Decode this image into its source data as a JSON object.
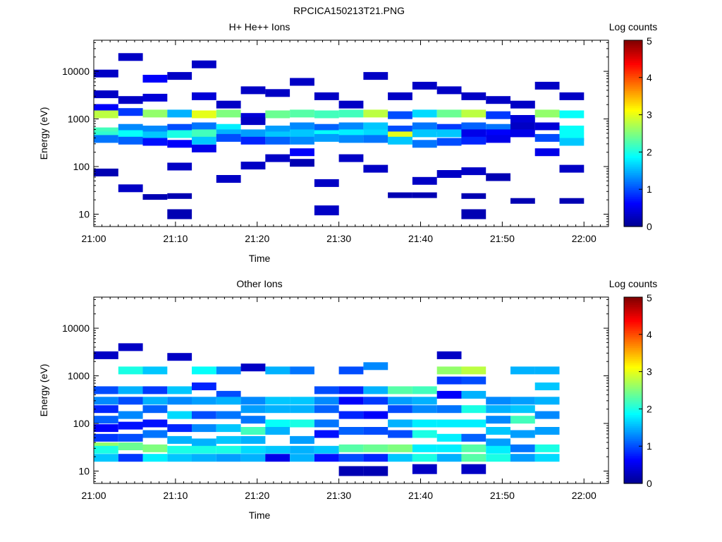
{
  "figure": {
    "title": "RPCICA150213T21.PNG"
  },
  "colors": {
    "cmap": [
      "#00008f",
      "#0000ff",
      "#007fff",
      "#00ffff",
      "#7fff7f",
      "#ffff00",
      "#ff7f00",
      "#ff0000",
      "#7f0000"
    ]
  },
  "chart_data": [
    {
      "type": "heatmap",
      "title": "H+ He++ Ions",
      "xlabel": "Time",
      "ylabel": "Energy (eV)",
      "xticks": [
        "21:00",
        "21:10",
        "21:20",
        "21:30",
        "21:40",
        "21:50",
        "22:00"
      ],
      "xlim_minutes": [
        0,
        63
      ],
      "yscale": "log",
      "ylim": [
        5.5,
        45000
      ],
      "yticks": [
        "10",
        "100",
        "1000",
        "10000"
      ],
      "colorbar": {
        "label": "Log counts",
        "range": [
          0,
          5
        ],
        "ticks": [
          "0",
          "1",
          "2",
          "3",
          "4",
          "5"
        ]
      },
      "time_bins_minutes": [
        0,
        3,
        6,
        9,
        12,
        15,
        18,
        21,
        24,
        27,
        30,
        33,
        36,
        39,
        42,
        45,
        48,
        51,
        54,
        57,
        60
      ],
      "bins": [
        [
          1700,
          0.6
        ],
        [
          1250,
          2.8
        ],
        [
          550,
          2.2
        ],
        [
          450,
          2.1
        ],
        [
          380,
          1.2
        ],
        [
          3300,
          0.3
        ],
        [
          9000,
          0.3
        ],
        [
          75,
          0.2
        ],
        [
          1400,
          0.9
        ],
        [
          650,
          1.3
        ],
        [
          480,
          1.9
        ],
        [
          350,
          1.1
        ],
        [
          2500,
          0.3
        ],
        [
          20000,
          0.3
        ],
        [
          35,
          0.3
        ],
        [
          1300,
          2.6
        ],
        [
          600,
          1.3
        ],
        [
          450,
          1.6
        ],
        [
          330,
          0.7
        ],
        [
          2800,
          0.4
        ],
        [
          7000,
          0.6
        ],
        [
          23,
          0.2
        ],
        [
          1300,
          1.5
        ],
        [
          650,
          1.0
        ],
        [
          480,
          2.0
        ],
        [
          300,
          0.6
        ],
        [
          8000,
          0.3
        ],
        [
          100,
          0.3
        ],
        [
          10,
          0.2
        ],
        [
          24,
          0.2
        ],
        [
          1250,
          3.0
        ],
        [
          700,
          1.2
        ],
        [
          500,
          2.2
        ],
        [
          350,
          1.6
        ],
        [
          240,
          0.5
        ],
        [
          3000,
          0.4
        ],
        [
          14000,
          0.3
        ],
        [
          1300,
          2.5
        ],
        [
          650,
          1.8
        ],
        [
          500,
          1.5
        ],
        [
          400,
          1.0
        ],
        [
          2000,
          0.3
        ],
        [
          55,
          0.3
        ],
        [
          1100,
          0.4
        ],
        [
          900,
          0.3
        ],
        [
          500,
          1.4
        ],
        [
          350,
          0.8
        ],
        [
          4000,
          0.3
        ],
        [
          105,
          0.3
        ],
        [
          1250,
          2.4
        ],
        [
          600,
          1.4
        ],
        [
          450,
          1.6
        ],
        [
          350,
          1.1
        ],
        [
          3500,
          0.3
        ],
        [
          150,
          0.3
        ],
        [
          1300,
          2.3
        ],
        [
          700,
          1.3
        ],
        [
          500,
          1.6
        ],
        [
          350,
          1.3
        ],
        [
          200,
          0.6
        ],
        [
          6000,
          0.3
        ],
        [
          120,
          0.2
        ],
        [
          1250,
          2.2
        ],
        [
          650,
          1.1
        ],
        [
          480,
          1.9
        ],
        [
          400,
          1.4
        ],
        [
          3000,
          0.3
        ],
        [
          45,
          0.3
        ],
        [
          12,
          0.3
        ],
        [
          1300,
          2.2
        ],
        [
          700,
          1.3
        ],
        [
          500,
          1.8
        ],
        [
          380,
          1.3
        ],
        [
          150,
          0.3
        ],
        [
          2000,
          0.3
        ],
        [
          1300,
          2.8
        ],
        [
          700,
          1.6
        ],
        [
          500,
          1.7
        ],
        [
          380,
          1.2
        ],
        [
          8000,
          0.3
        ],
        [
          90,
          0.3
        ],
        [
          1200,
          1.0
        ],
        [
          600,
          1.0
        ],
        [
          450,
          3.0
        ],
        [
          350,
          1.6
        ],
        [
          3000,
          0.3
        ],
        [
          25,
          0.2
        ],
        [
          1300,
          1.7
        ],
        [
          700,
          1.2
        ],
        [
          500,
          1.6
        ],
        [
          300,
          1.2
        ],
        [
          5000,
          0.3
        ],
        [
          50,
          0.3
        ],
        [
          25,
          0.2
        ],
        [
          1300,
          2.4
        ],
        [
          650,
          0.9
        ],
        [
          500,
          1.6
        ],
        [
          330,
          1.0
        ],
        [
          4000,
          0.3
        ],
        [
          70,
          0.3
        ],
        [
          1300,
          2.8
        ],
        [
          700,
          1.1
        ],
        [
          500,
          0.5
        ],
        [
          350,
          0.8
        ],
        [
          3000,
          0.3
        ],
        [
          80,
          0.3
        ],
        [
          10,
          0.2
        ],
        [
          24,
          0.2
        ],
        [
          1200,
          0.9
        ],
        [
          650,
          1.2
        ],
        [
          500,
          0.6
        ],
        [
          380,
          0.5
        ],
        [
          2500,
          0.3
        ],
        [
          60,
          0.2
        ],
        [
          1000,
          0.4
        ],
        [
          700,
          0.3
        ],
        [
          500,
          0.5
        ],
        [
          2000,
          0.3
        ],
        [
          19,
          0.2
        ],
        [
          1300,
          2.6
        ],
        [
          700,
          0.4
        ],
        [
          400,
          1.0
        ],
        [
          200,
          0.5
        ],
        [
          5000,
          0.3
        ],
        [
          1250,
          1.9
        ],
        [
          600,
          1.9
        ],
        [
          420,
          1.9
        ],
        [
          330,
          1.6
        ],
        [
          3000,
          0.3
        ],
        [
          90,
          0.3
        ],
        [
          19,
          0.2
        ]
      ]
    },
    {
      "type": "heatmap",
      "title": "Other Ions",
      "xlabel": "Time",
      "ylabel": "Energy (eV)",
      "xticks": [
        "21:00",
        "21:10",
        "21:20",
        "21:30",
        "21:40",
        "21:50",
        "22:00"
      ],
      "xlim_minutes": [
        0,
        63
      ],
      "yscale": "log",
      "ylim": [
        5.5,
        45000
      ],
      "yticks": [
        "10",
        "100",
        "1000",
        "10000"
      ],
      "colorbar": {
        "label": "Log counts",
        "range": [
          0,
          5
        ],
        "ticks": [
          "0",
          "1",
          "2",
          "3",
          "4",
          "5"
        ]
      },
      "time_bins_minutes": [
        0,
        3,
        6,
        9,
        12,
        15,
        18,
        21,
        24,
        27,
        30,
        33,
        36,
        39,
        42,
        45,
        48,
        51,
        54,
        57,
        60
      ],
      "bins": [
        [
          500,
          1.0
        ],
        [
          300,
          1.3
        ],
        [
          200,
          0.8
        ],
        [
          120,
          1.1
        ],
        [
          80,
          0.6
        ],
        [
          50,
          0.9
        ],
        [
          33,
          2.6
        ],
        [
          28,
          2.0
        ],
        [
          19,
          1.6
        ],
        [
          2700,
          0.3
        ],
        [
          1300,
          2.0
        ],
        [
          500,
          1.5
        ],
        [
          300,
          1.0
        ],
        [
          150,
          1.3
        ],
        [
          90,
          0.7
        ],
        [
          50,
          1.0
        ],
        [
          33,
          2.4
        ],
        [
          19,
          0.9
        ],
        [
          4000,
          0.3
        ],
        [
          1300,
          1.6
        ],
        [
          500,
          0.9
        ],
        [
          300,
          1.5
        ],
        [
          200,
          1.1
        ],
        [
          100,
          0.7
        ],
        [
          60,
          1.2
        ],
        [
          30,
          2.5
        ],
        [
          19,
          1.8
        ],
        [
          500,
          1.6
        ],
        [
          300,
          1.3
        ],
        [
          150,
          1.7
        ],
        [
          80,
          0.8
        ],
        [
          45,
          1.5
        ],
        [
          28,
          2.0
        ],
        [
          19,
          1.6
        ],
        [
          2500,
          0.3
        ],
        [
          1300,
          1.9
        ],
        [
          600,
          0.8
        ],
        [
          300,
          1.4
        ],
        [
          150,
          1.0
        ],
        [
          80,
          1.3
        ],
        [
          40,
          1.5
        ],
        [
          28,
          2.0
        ],
        [
          19,
          1.5
        ],
        [
          1300,
          1.3
        ],
        [
          400,
          1.0
        ],
        [
          300,
          1.5
        ],
        [
          150,
          1.2
        ],
        [
          80,
          1.6
        ],
        [
          45,
          1.6
        ],
        [
          28,
          2.0
        ],
        [
          19,
          1.4
        ],
        [
          300,
          1.3
        ],
        [
          200,
          1.4
        ],
        [
          120,
          1.2
        ],
        [
          70,
          2.2
        ],
        [
          45,
          1.5
        ],
        [
          28,
          1.7
        ],
        [
          19,
          1.5
        ],
        [
          1500,
          0.3
        ],
        [
          1300,
          1.5
        ],
        [
          300,
          1.6
        ],
        [
          200,
          1.5
        ],
        [
          100,
          1.9
        ],
        [
          70,
          1.5
        ],
        [
          28,
          1.6
        ],
        [
          19,
          0.5
        ],
        [
          1300,
          1.2
        ],
        [
          300,
          1.6
        ],
        [
          200,
          1.5
        ],
        [
          100,
          2.0
        ],
        [
          45,
          1.4
        ],
        [
          28,
          1.5
        ],
        [
          19,
          1.5
        ],
        [
          500,
          1.0
        ],
        [
          300,
          1.3
        ],
        [
          200,
          1.1
        ],
        [
          100,
          1.2
        ],
        [
          60,
          0.7
        ],
        [
          28,
          1.6
        ],
        [
          19,
          0.7
        ],
        [
          1300,
          1.0
        ],
        [
          500,
          0.8
        ],
        [
          300,
          0.6
        ],
        [
          150,
          0.8
        ],
        [
          70,
          1.1
        ],
        [
          30,
          2.3
        ],
        [
          19,
          1.0
        ],
        [
          10,
          0.2
        ],
        [
          1600,
          1.3
        ],
        [
          500,
          1.5
        ],
        [
          300,
          0.9
        ],
        [
          150,
          0.6
        ],
        [
          70,
          1.0
        ],
        [
          30,
          2.4
        ],
        [
          19,
          0.8
        ],
        [
          10,
          0.2
        ],
        [
          500,
          2.3
        ],
        [
          300,
          1.4
        ],
        [
          200,
          1.0
        ],
        [
          100,
          1.5
        ],
        [
          60,
          1.0
        ],
        [
          30,
          2.5
        ],
        [
          19,
          1.6
        ],
        [
          500,
          2.2
        ],
        [
          300,
          1.5
        ],
        [
          200,
          1.3
        ],
        [
          100,
          1.8
        ],
        [
          60,
          2.0
        ],
        [
          30,
          1.8
        ],
        [
          19,
          2.0
        ],
        [
          11,
          0.3
        ],
        [
          1300,
          2.6
        ],
        [
          800,
          0.9
        ],
        [
          400,
          0.6
        ],
        [
          200,
          1.2
        ],
        [
          100,
          1.8
        ],
        [
          50,
          1.8
        ],
        [
          30,
          1.8
        ],
        [
          19,
          1.5
        ],
        [
          2700,
          0.3
        ],
        [
          1300,
          2.8
        ],
        [
          800,
          1.0
        ],
        [
          400,
          1.5
        ],
        [
          200,
          2.0
        ],
        [
          100,
          1.8
        ],
        [
          50,
          1.1
        ],
        [
          30,
          2.3
        ],
        [
          19,
          2.3
        ],
        [
          11,
          0.3
        ],
        [
          300,
          1.3
        ],
        [
          200,
          1.5
        ],
        [
          120,
          1.3
        ],
        [
          70,
          1.6
        ],
        [
          40,
          1.4
        ],
        [
          28,
          1.8
        ],
        [
          19,
          2.0
        ],
        [
          1300,
          1.5
        ],
        [
          300,
          1.4
        ],
        [
          200,
          1.6
        ],
        [
          120,
          2.2
        ],
        [
          60,
          1.4
        ],
        [
          30,
          1.2
        ],
        [
          19,
          1.4
        ],
        [
          1300,
          1.5
        ],
        [
          600,
          1.6
        ],
        [
          300,
          1.5
        ],
        [
          150,
          1.3
        ],
        [
          70,
          1.4
        ],
        [
          30,
          2.0
        ],
        [
          19,
          1.7
        ]
      ]
    }
  ]
}
